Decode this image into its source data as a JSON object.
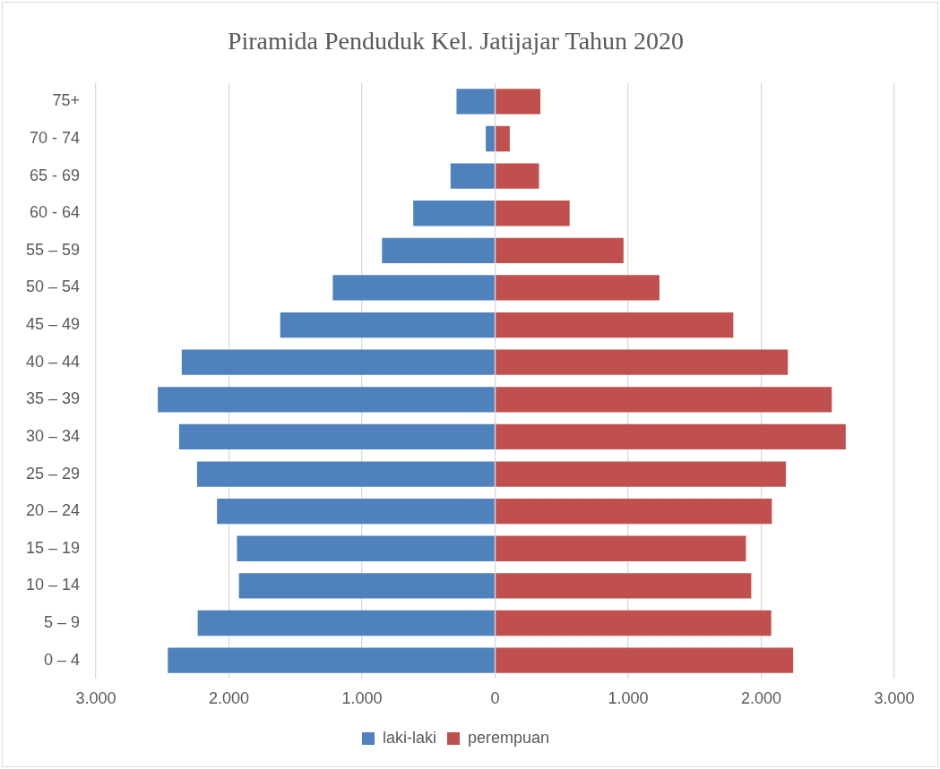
{
  "chart_data": {
    "type": "bar",
    "orientation": "horizontal",
    "title": "Piramida Penduduk Kel. Jatijajar Tahun 2020",
    "categories": [
      "75+",
      "70 - 74",
      "65 - 69",
      "60 - 64",
      "55 – 59",
      "50 – 54",
      "45 – 49",
      "40 – 44",
      "35 – 39",
      "30 – 34",
      "25 – 29",
      "20 – 24",
      "15 – 19",
      "10 – 14",
      "5 – 9",
      "0 – 4"
    ],
    "series": [
      {
        "name": "laki-laki",
        "color": "#4f81bd",
        "values": [
          -290,
          -70,
          -335,
          -615,
          -850,
          -1220,
          -1615,
          -2355,
          -2535,
          -2375,
          -2240,
          -2090,
          -1940,
          -1925,
          -2235,
          -2460
        ]
      },
      {
        "name": "perempuan",
        "color": "#c0504d",
        "values": [
          340,
          110,
          330,
          560,
          965,
          1235,
          1790,
          2200,
          2530,
          2635,
          2185,
          2080,
          1885,
          1925,
          2075,
          2240
        ]
      }
    ],
    "xlim": [
      -3000,
      3000
    ],
    "xticks": [
      {
        "value": -3000,
        "label": "3.000"
      },
      {
        "value": -2000,
        "label": "2.000"
      },
      {
        "value": -1000,
        "label": "1.000"
      },
      0,
      {
        "value": 1000,
        "label": "1.000"
      },
      {
        "value": 2000,
        "label": "2.000"
      },
      {
        "value": 3000,
        "label": "3.000"
      }
    ],
    "grid": "x",
    "legend": "bottom",
    "stacked": true
  }
}
